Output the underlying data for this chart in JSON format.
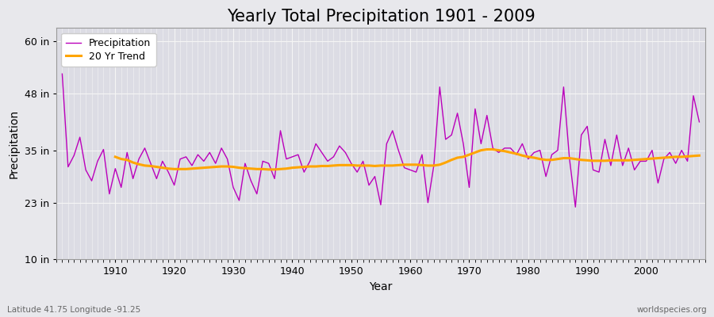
{
  "title": "Yearly Total Precipitation 1901 - 2009",
  "xlabel": "Year",
  "ylabel": "Precipitation",
  "lat_label": "Latitude 41.75 Longitude -91.25",
  "source_label": "worldspecies.org",
  "years": [
    1901,
    1902,
    1903,
    1904,
    1905,
    1906,
    1907,
    1908,
    1909,
    1910,
    1911,
    1912,
    1913,
    1914,
    1915,
    1916,
    1917,
    1918,
    1919,
    1920,
    1921,
    1922,
    1923,
    1924,
    1925,
    1926,
    1927,
    1928,
    1929,
    1930,
    1931,
    1932,
    1933,
    1934,
    1935,
    1936,
    1937,
    1938,
    1939,
    1940,
    1941,
    1942,
    1943,
    1944,
    1945,
    1946,
    1947,
    1948,
    1949,
    1950,
    1951,
    1952,
    1953,
    1954,
    1955,
    1956,
    1957,
    1958,
    1959,
    1960,
    1961,
    1962,
    1963,
    1964,
    1965,
    1966,
    1967,
    1968,
    1969,
    1970,
    1971,
    1972,
    1973,
    1974,
    1975,
    1976,
    1977,
    1978,
    1979,
    1980,
    1981,
    1982,
    1983,
    1984,
    1985,
    1986,
    1987,
    1988,
    1989,
    1990,
    1991,
    1992,
    1993,
    1994,
    1995,
    1996,
    1997,
    1998,
    1999,
    2000,
    2001,
    2002,
    2003,
    2004,
    2005,
    2006,
    2007,
    2008,
    2009
  ],
  "precip": [
    52.5,
    31.2,
    33.8,
    38.0,
    30.5,
    28.0,
    32.5,
    35.2,
    25.0,
    30.8,
    26.5,
    34.5,
    28.5,
    33.0,
    35.5,
    32.0,
    28.5,
    32.5,
    30.0,
    27.0,
    33.0,
    33.5,
    31.5,
    34.0,
    32.5,
    34.5,
    32.0,
    35.5,
    33.0,
    26.5,
    23.5,
    32.0,
    28.0,
    25.0,
    32.5,
    32.0,
    28.5,
    39.5,
    33.0,
    33.5,
    34.0,
    30.0,
    32.5,
    36.5,
    34.5,
    32.5,
    33.5,
    36.0,
    34.5,
    32.0,
    30.0,
    32.5,
    27.0,
    29.0,
    22.5,
    36.5,
    39.5,
    35.0,
    31.0,
    30.5,
    30.0,
    34.0,
    23.0,
    31.5,
    49.5,
    37.5,
    38.5,
    43.5,
    36.5,
    26.5,
    44.5,
    36.5,
    43.0,
    35.5,
    34.5,
    35.5,
    35.5,
    34.0,
    36.5,
    33.0,
    34.5,
    35.0,
    29.0,
    34.0,
    35.0,
    49.5,
    33.0,
    22.0,
    38.5,
    40.5,
    30.5,
    30.0,
    37.5,
    31.5,
    38.5,
    31.5,
    35.5,
    30.5,
    32.5,
    32.5,
    35.0,
    27.5,
    33.0,
    34.5,
    32.0,
    35.0,
    32.5,
    47.5,
    41.5
  ],
  "trend_years": [
    1910,
    1911,
    1912,
    1913,
    1914,
    1915,
    1916,
    1917,
    1918,
    1919,
    1920,
    1921,
    1922,
    1923,
    1924,
    1925,
    1926,
    1927,
    1928,
    1929,
    1930,
    1931,
    1932,
    1933,
    1934,
    1935,
    1936,
    1937,
    1938,
    1939,
    1940,
    1941,
    1942,
    1943,
    1944,
    1945,
    1946,
    1947,
    1948,
    1949,
    1950,
    1951,
    1952,
    1953,
    1954,
    1955,
    1956,
    1957,
    1958,
    1959,
    1960,
    1961,
    1962,
    1963,
    1964,
    1965,
    1966,
    1967,
    1968,
    1969,
    1970,
    1971,
    1972,
    1973,
    1974,
    1975,
    1976,
    1977,
    1978,
    1979,
    1980,
    1981,
    1982,
    1983,
    1984,
    1985,
    1986,
    1987,
    1988,
    1989,
    1990,
    1991,
    1992,
    1993,
    1994,
    1995,
    1996,
    1997,
    1998,
    1999,
    2000,
    2001,
    2002,
    2003,
    2004,
    2005,
    2006,
    2007,
    2008,
    2009
  ],
  "trend_vals": [
    33.5,
    33.0,
    32.8,
    32.2,
    31.8,
    31.5,
    31.4,
    31.2,
    31.0,
    30.8,
    30.7,
    30.7,
    30.7,
    30.8,
    30.9,
    31.0,
    31.1,
    31.2,
    31.3,
    31.3,
    31.2,
    31.0,
    30.9,
    30.8,
    30.7,
    30.7,
    30.6,
    30.6,
    30.7,
    30.8,
    31.0,
    31.1,
    31.2,
    31.3,
    31.3,
    31.4,
    31.4,
    31.5,
    31.6,
    31.6,
    31.6,
    31.5,
    31.5,
    31.5,
    31.4,
    31.5,
    31.5,
    31.5,
    31.6,
    31.7,
    31.7,
    31.7,
    31.6,
    31.5,
    31.5,
    31.7,
    32.2,
    32.8,
    33.3,
    33.5,
    34.0,
    34.5,
    35.0,
    35.2,
    35.2,
    35.0,
    34.8,
    34.5,
    34.2,
    33.8,
    33.5,
    33.3,
    33.0,
    32.8,
    32.8,
    33.0,
    33.2,
    33.2,
    33.0,
    32.8,
    32.7,
    32.6,
    32.6,
    32.6,
    32.7,
    32.7,
    32.7,
    32.7,
    32.8,
    32.9,
    33.0,
    33.1,
    33.2,
    33.3,
    33.4,
    33.5,
    33.5,
    33.6,
    33.7,
    33.8
  ],
  "precip_color": "#bb00bb",
  "trend_color": "#ffa500",
  "bg_color": "#e8e8ec",
  "plot_bg_color": "#dcdce4",
  "grid_color": "#f5f5f5",
  "yticks": [
    10,
    23,
    35,
    48,
    60
  ],
  "ytick_labels": [
    "10 in",
    "23 in",
    "35 in",
    "48 in",
    "60 in"
  ],
  "ylim": [
    10,
    63
  ],
  "xlim": [
    1900,
    2010
  ],
  "xticks": [
    1910,
    1920,
    1930,
    1940,
    1950,
    1960,
    1970,
    1980,
    1990,
    2000
  ],
  "title_fontsize": 15,
  "axis_label_fontsize": 10,
  "tick_fontsize": 9,
  "legend_fontsize": 9
}
